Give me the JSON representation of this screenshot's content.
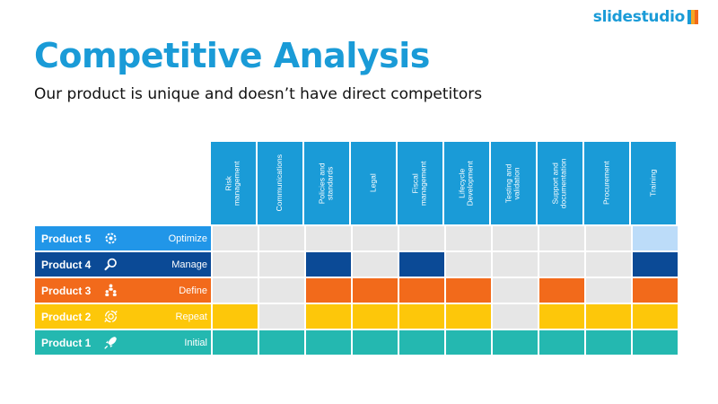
{
  "logo": {
    "text": "slidestudio",
    "colors": [
      "#1a9bd7",
      "#f5a623",
      "#f26a1b"
    ]
  },
  "title": "Competitive Analysis",
  "subtitle": "Our product is unique and doesn’t have direct competitors",
  "columns": [
    "Risk\nmanagement",
    "Communications",
    "Policies and\nstandards",
    "Legal",
    "Fiscal\nmanagement",
    "Lifecycle\nDevelopment",
    "Testing and\nvalidation",
    "Support and\ndocumentation",
    "Procurement",
    "Training"
  ],
  "colors": {
    "header": "#1a9bd7",
    "empty": "#e6e6e6",
    "product5": "#2196e8",
    "product5_fill": "#bcdcf9",
    "product4": "#0b4a96",
    "product3": "#f26a1b",
    "product2": "#fdc70a",
    "product1": "#24b8b0"
  },
  "rows": [
    {
      "name": "Product 5",
      "level": "Optimize",
      "icon": "gear-icon",
      "color": "#2196e8",
      "fill": "#bcdcf9",
      "cells": [
        0,
        0,
        0,
        0,
        0,
        0,
        0,
        0,
        0,
        1
      ]
    },
    {
      "name": "Product 4",
      "level": "Manage",
      "icon": "magnifier-icon",
      "color": "#0b4a96",
      "fill": "#0b4a96",
      "cells": [
        0,
        0,
        1,
        0,
        1,
        0,
        0,
        0,
        0,
        1
      ]
    },
    {
      "name": "Product 3",
      "level": "Define",
      "icon": "team-icon",
      "color": "#f26a1b",
      "fill": "#f26a1b",
      "cells": [
        0,
        0,
        1,
        1,
        1,
        1,
        0,
        1,
        0,
        1
      ]
    },
    {
      "name": "Product 2",
      "level": "Repeat",
      "icon": "cycle-icon",
      "color": "#fdc70a",
      "fill": "#fdc70a",
      "cells": [
        1,
        0,
        1,
        1,
        1,
        1,
        0,
        1,
        1,
        1
      ]
    },
    {
      "name": "Product 1",
      "level": "Initial",
      "icon": "rocket-icon",
      "color": "#24b8b0",
      "fill": "#24b8b0",
      "cells": [
        1,
        1,
        1,
        1,
        1,
        1,
        1,
        1,
        1,
        1
      ]
    }
  ]
}
